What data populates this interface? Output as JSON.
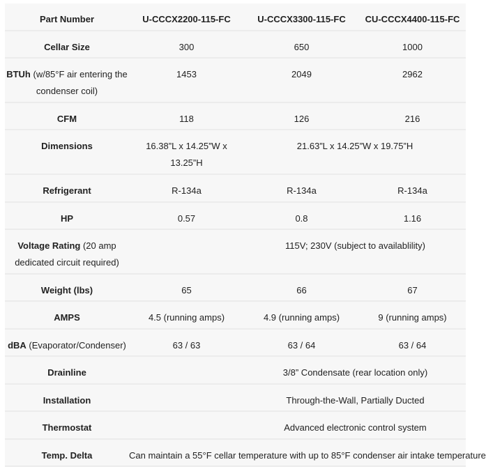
{
  "table": {
    "header": {
      "label": "Part Number",
      "cells": [
        "U-CCCX2200-115-FC",
        "U-CCCX3300-115-FC",
        "CU-CCCX4400-115-FC"
      ]
    },
    "rows": [
      {
        "label": "Cellar Size",
        "label_rest": "",
        "cells": [
          "300",
          "650",
          "1000"
        ],
        "span": "none",
        "height": 39
      },
      {
        "label": "BTUh",
        "label_rest": " (w/85°F air entering the condenser coil)",
        "cells": [
          "1453",
          "2049",
          "2962"
        ],
        "span": "none",
        "height": 64
      },
      {
        "label": "CFM",
        "label_rest": "",
        "cells": [
          "118",
          "126",
          "216"
        ],
        "span": "none",
        "height": 39
      },
      {
        "label": "Dimensions",
        "label_rest": "",
        "cells": [
          "16.38”L x 14.25”W x 13.25”H",
          "21.63”L x 14.25”W x 19.75”H"
        ],
        "span": "last-two",
        "height": 64
      },
      {
        "label": "Refrigerant",
        "label_rest": "",
        "cells": [
          "R-134a",
          "R-134a",
          "R-134a"
        ],
        "span": "none",
        "height": 40
      },
      {
        "label": "HP",
        "label_rest": "",
        "cells": [
          "0.57",
          "0.8",
          "1.16"
        ],
        "span": "none",
        "height": 39
      },
      {
        "label": "Voltage Rating",
        "label_rest": " (20 amp dedicated circuit required)",
        "cells": [
          "115V; 230V (subject to availablility)"
        ],
        "span": "right",
        "height": 64
      },
      {
        "label": "Weight (lbs)",
        "label_rest": "",
        "cells": [
          "65",
          "66",
          "67"
        ],
        "span": "none",
        "height": 39
      },
      {
        "label": "AMPS",
        "label_rest": "",
        "cells": [
          "4.5 (running amps)",
          "4.9 (running amps)",
          "9 (running amps)"
        ],
        "span": "none",
        "height": 40
      },
      {
        "label": "dBA",
        "label_rest": " (Evaporator/Condenser)",
        "cells": [
          "63 / 63",
          "63 / 64",
          "63 / 64"
        ],
        "span": "none",
        "height": 39
      },
      {
        "label": "Drainline",
        "label_rest": "",
        "cells": [
          "3/8” Condensate (rear location only)"
        ],
        "span": "right",
        "height": 40
      },
      {
        "label": "Installation",
        "label_rest": "",
        "cells": [
          "Through-the-Wall, Partially Ducted"
        ],
        "span": "right",
        "height": 39
      },
      {
        "label": "Thermostat",
        "label_rest": "",
        "cells": [
          "Advanced electronic control system"
        ],
        "span": "right",
        "height": 40
      },
      {
        "label": "Temp. Delta",
        "label_rest": "",
        "cells": [
          "Can maintain a 55°F cellar temperature with up to 85°F condenser air intake temperature"
        ],
        "span": "full",
        "height": 39
      }
    ]
  },
  "colors": {
    "row_bg": "#f7f7f7",
    "divider": "#ececec",
    "text": "#222222"
  }
}
